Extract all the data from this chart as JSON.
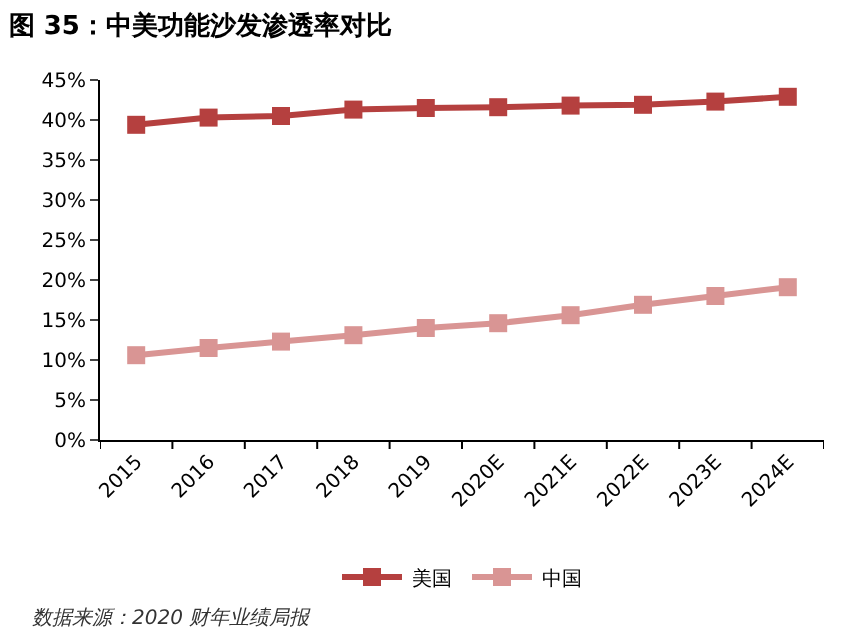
{
  "chart_data": {
    "type": "line",
    "title": "图 35：中美功能沙发渗透率对比",
    "categories": [
      "2015",
      "2016",
      "2017",
      "2018",
      "2019",
      "2020E",
      "2021E",
      "2022E",
      "2023E",
      "2024E"
    ],
    "series": [
      {
        "name": "美国",
        "color": "#b5403f",
        "values": [
          39.4,
          40.3,
          40.5,
          41.3,
          41.5,
          41.6,
          41.8,
          41.9,
          42.3,
          42.9
        ]
      },
      {
        "name": "中国",
        "color": "#d99594",
        "values": [
          10.6,
          11.5,
          12.3,
          13.1,
          14.0,
          14.6,
          15.6,
          16.9,
          18.0,
          19.1
        ]
      }
    ],
    "ylim": [
      0,
      45
    ],
    "yticks": [
      {
        "value": 0,
        "label": "0%"
      },
      {
        "value": 5,
        "label": "5%"
      },
      {
        "value": 10,
        "label": "10%"
      },
      {
        "value": 15,
        "label": "15%"
      },
      {
        "value": 20,
        "label": "20%"
      },
      {
        "value": 25,
        "label": "25%"
      },
      {
        "value": 30,
        "label": "30%"
      },
      {
        "value": 35,
        "label": "35%"
      },
      {
        "value": 40,
        "label": "40%"
      },
      {
        "value": 45,
        "label": "45%"
      }
    ],
    "legend": "bottom",
    "marker": "square",
    "line_style": "solid",
    "annotations": [
      "数据来源：2020 财年业绩局报"
    ]
  }
}
